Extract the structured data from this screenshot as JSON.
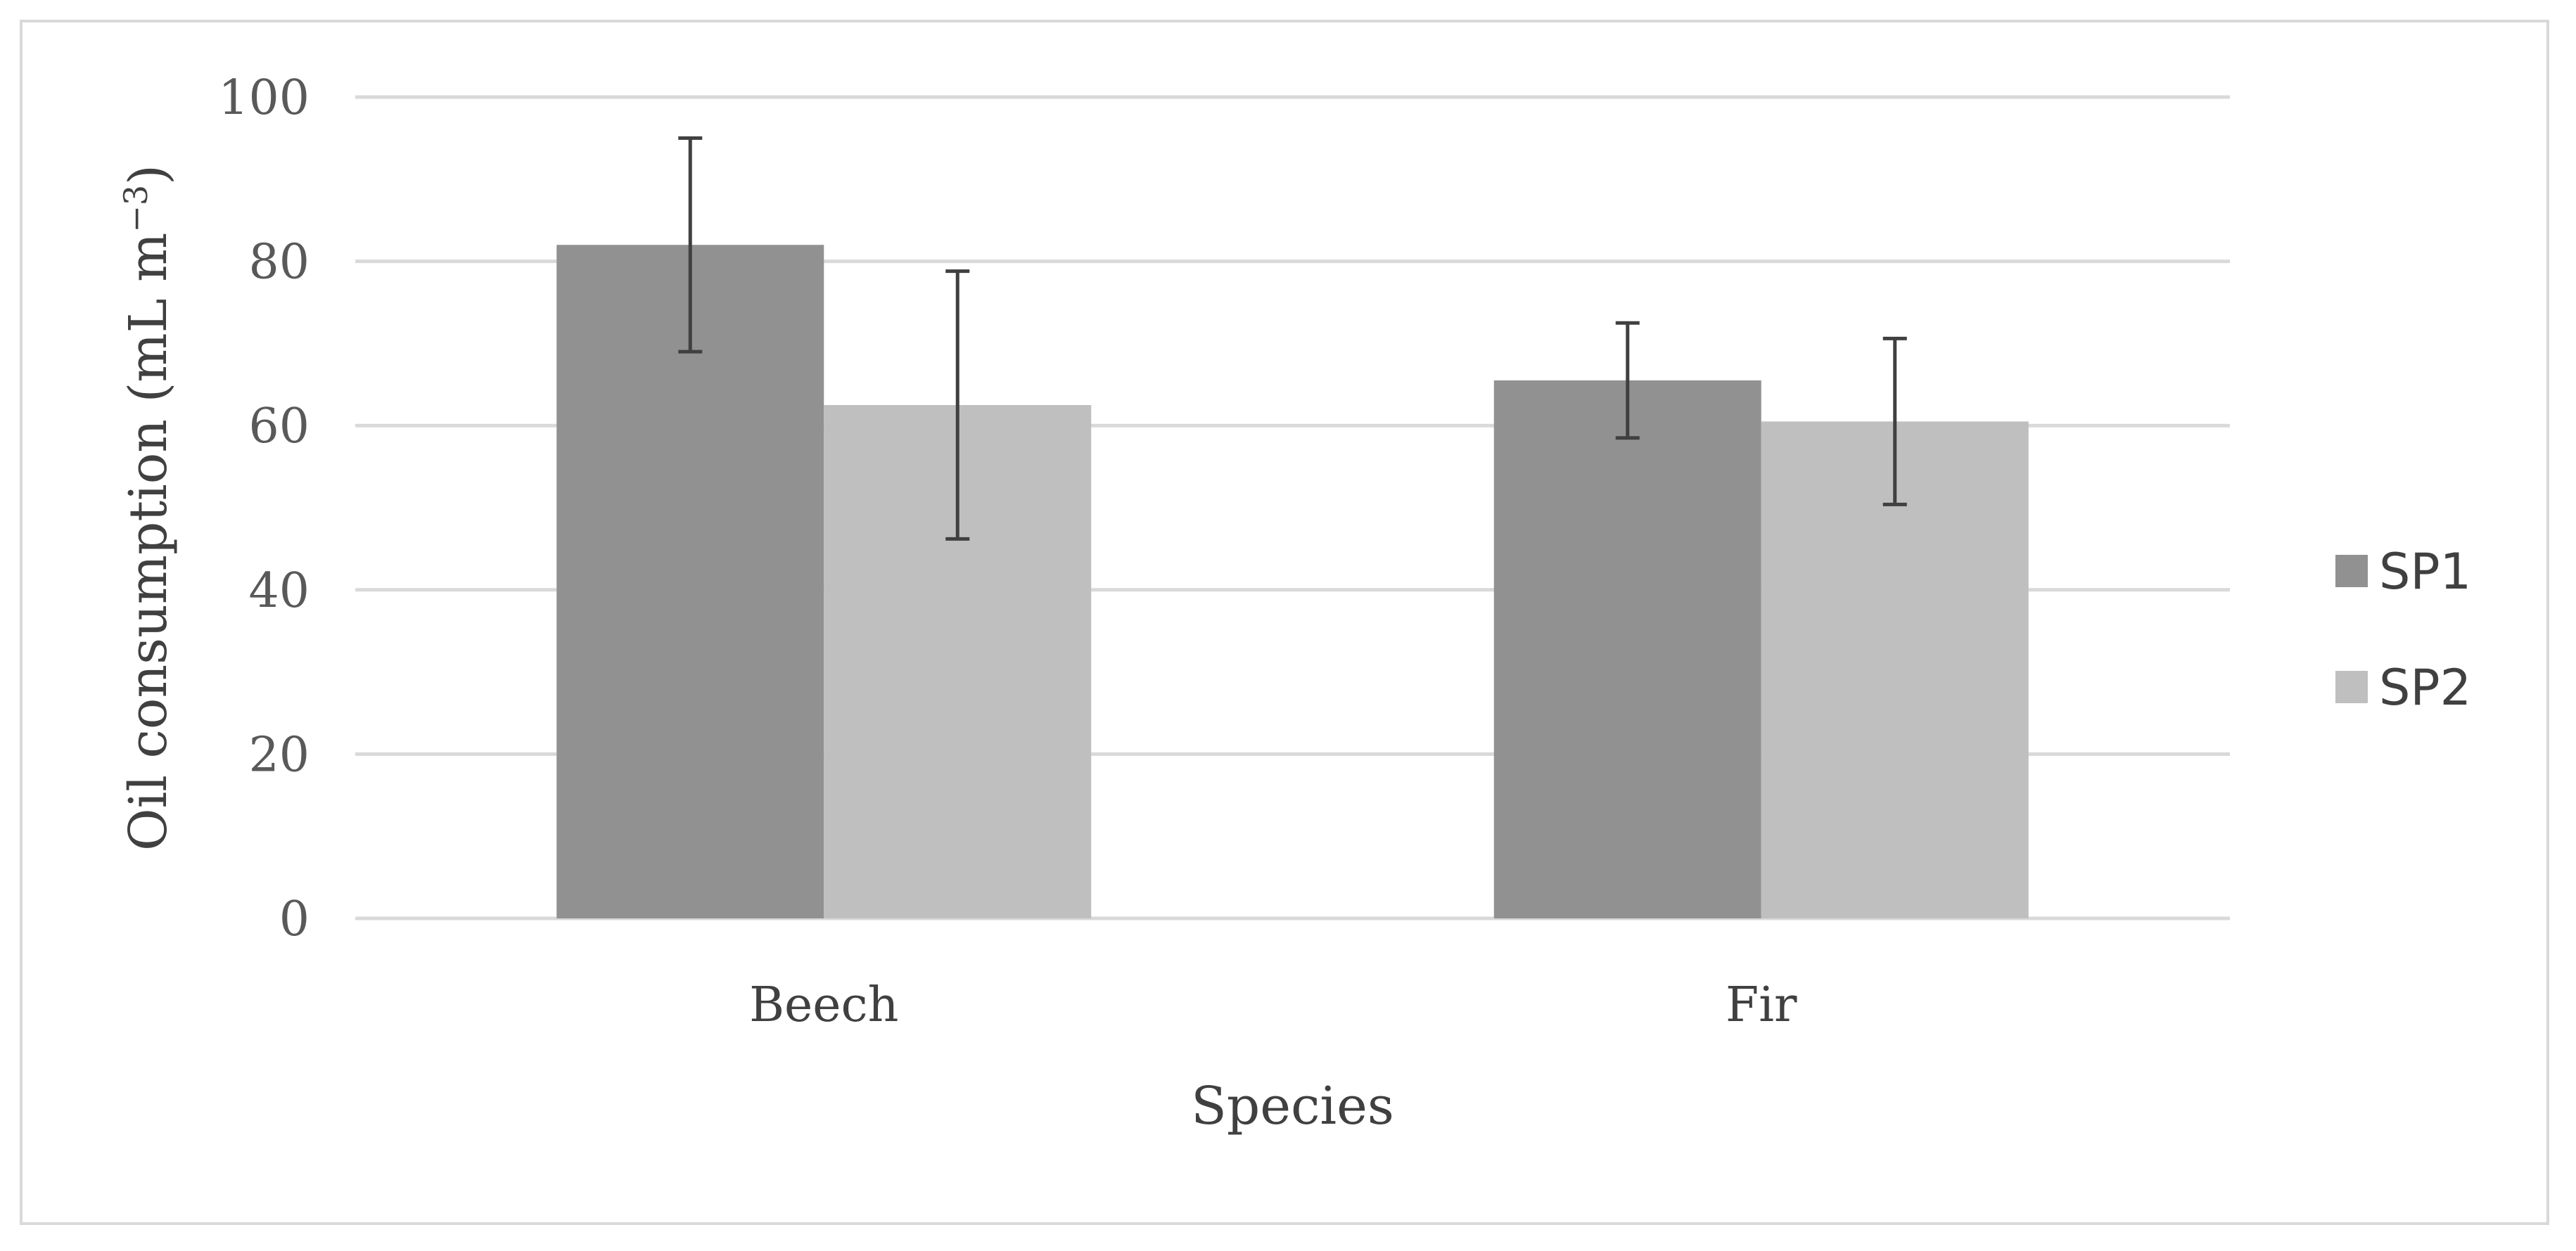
{
  "chart_data": {
    "type": "bar",
    "title": "",
    "xlabel": "Species",
    "ylabel": "Oil consumption (mL m",
    "ylabel_superscript": "−3",
    "ylabel_close": ")",
    "categories": [
      "Beech",
      "Fir"
    ],
    "series": [
      {
        "name": "SP1",
        "color": "#919191",
        "values": [
          82.0,
          65.5
        ],
        "errors": [
          13.0,
          7.0
        ]
      },
      {
        "name": "SP2",
        "color": "#bfbfbf",
        "values": [
          62.5,
          60.5
        ],
        "errors": [
          16.3,
          10.1
        ]
      }
    ],
    "ylim": [
      0,
      100
    ],
    "yticks": [
      0,
      20,
      40,
      60,
      80,
      100
    ],
    "grid": true,
    "legend_position": "right",
    "colors": {
      "gridline": "#d9d9d9",
      "errorbar": "#404040",
      "frame": "#d9d9d9"
    }
  }
}
